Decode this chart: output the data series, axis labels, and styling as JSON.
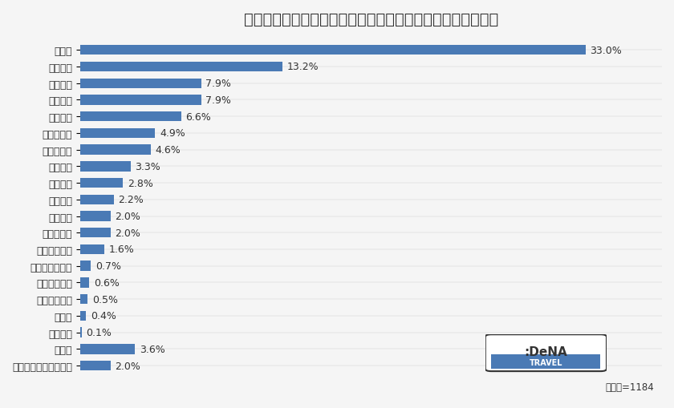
{
  "title": "あなたが感じている「若者の〇〇離れ」をお選びください。",
  "categories": [
    "車離れ",
    "新聞離れ",
    "読書離れ",
    "結婚離れ",
    "お酒離れ",
    "テレビ離れ",
    "タバコ離れ",
    "恋愛離れ",
    "旅行離れ",
    "選挙離れ",
    "外出離れ",
    "ゴルフ離れ",
    "パソコン離れ",
    "ギャンブル離れ",
    "カラオケ離れ",
    "フルーツ離れ",
    "海離れ",
    "音楽離れ",
    "その他",
    "あてはまるものはない"
  ],
  "values": [
    33.0,
    13.2,
    7.9,
    7.9,
    6.6,
    4.9,
    4.6,
    3.3,
    2.8,
    2.2,
    2.0,
    2.0,
    1.6,
    0.7,
    0.6,
    0.5,
    0.4,
    0.1,
    3.6,
    2.0
  ],
  "labels": [
    "33.0%",
    "13.2%",
    "7.9%",
    "7.9%",
    "6.6%",
    "4.9%",
    "4.6%",
    "3.3%",
    "2.8%",
    "2.2%",
    "2.0%",
    "2.0%",
    "1.6%",
    "0.7%",
    "0.6%",
    "0.5%",
    "0.4%",
    "0.1%",
    "3.6%",
    "2.0%"
  ],
  "bar_color": "#4a7ab5",
  "bg_color": "#f5f5f5",
  "title_fontsize": 14,
  "label_fontsize": 9,
  "tick_fontsize": 9,
  "footnote": "回答数=1184",
  "xlim": [
    0,
    38
  ]
}
